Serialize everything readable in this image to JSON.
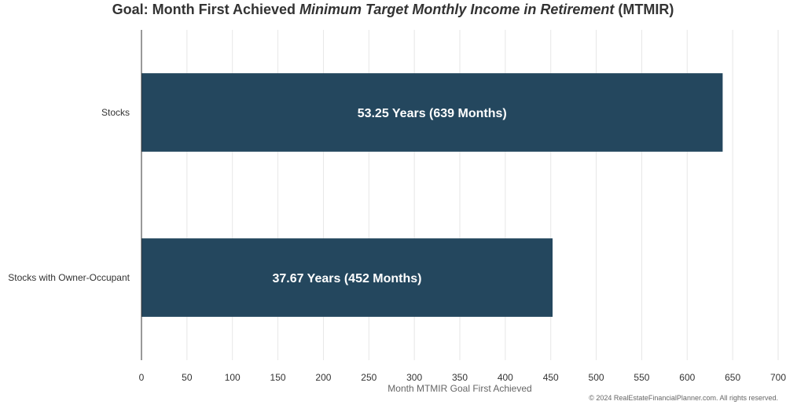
{
  "chart_data": {
    "type": "bar",
    "orientation": "horizontal",
    "title": {
      "prefix": "Goal: Month First Achieved ",
      "emphasis": "Minimum Target Monthly Income in Retirement",
      "suffix": " (MTMIR)"
    },
    "categories": [
      "Stocks",
      "Stocks with Owner-Occupant"
    ],
    "values": [
      639,
      452
    ],
    "data_labels": [
      "53.25 Years (639 Months)",
      "37.67 Years (452 Months)"
    ],
    "xlabel": "Month MTMIR Goal First Achieved",
    "ylabel": "",
    "xlim": [
      0,
      700
    ],
    "x_ticks": [
      "0",
      "50",
      "100",
      "150",
      "200",
      "250",
      "300",
      "350",
      "400",
      "450",
      "500",
      "550",
      "600",
      "650",
      "700"
    ],
    "grid": "vertical",
    "legend": "none",
    "colors": {
      "bar": "#24475e",
      "grid": "#e6e6e6",
      "axis": "#333333",
      "text": "#333333",
      "data_label": "#ffffff"
    }
  },
  "footer": {
    "copyright": "© 2024 RealEstateFinancialPlanner.com. All rights reserved."
  }
}
